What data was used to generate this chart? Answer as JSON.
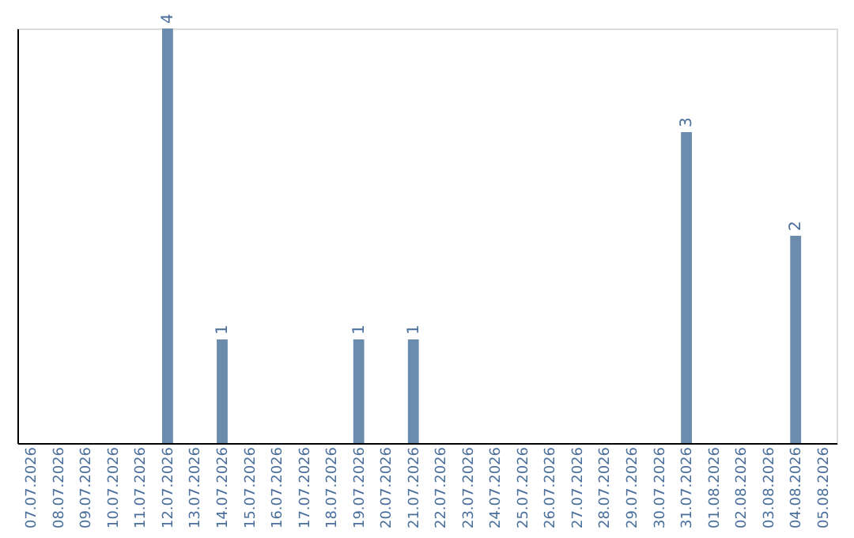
{
  "chart_data": {
    "type": "bar",
    "categories": [
      "07.07.2026",
      "08.07.2026",
      "09.07.2026",
      "10.07.2026",
      "11.07.2026",
      "12.07.2026",
      "13.07.2026",
      "14.07.2026",
      "15.07.2026",
      "16.07.2026",
      "17.07.2026",
      "18.07.2026",
      "19.07.2026",
      "20.07.2026",
      "21.07.2026",
      "22.07.2026",
      "23.07.2026",
      "24.07.2026",
      "25.07.2026",
      "26.07.2026",
      "27.07.2026",
      "28.07.2026",
      "29.07.2026",
      "30.07.2026",
      "31.07.2026",
      "01.08.2026",
      "02.08.2026",
      "03.08.2026",
      "04.08.2026",
      "05.08.2026"
    ],
    "values": [
      0,
      0,
      0,
      0,
      0,
      4,
      0,
      1,
      0,
      0,
      0,
      0,
      1,
      0,
      1,
      0,
      0,
      0,
      0,
      0,
      0,
      0,
      0,
      0,
      3,
      0,
      0,
      0,
      2,
      0
    ],
    "value_labels": [
      null,
      null,
      null,
      null,
      null,
      "4",
      null,
      "1",
      null,
      null,
      null,
      null,
      "1",
      null,
      "1",
      null,
      null,
      null,
      null,
      null,
      null,
      null,
      null,
      null,
      "3",
      null,
      null,
      null,
      "2",
      null
    ],
    "color": "#6b8cad",
    "grid": false,
    "tick_labels": "x"
  }
}
